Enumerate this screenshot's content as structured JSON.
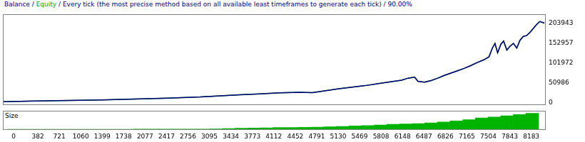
{
  "chart_data": [
    {
      "type": "line",
      "title": "Balance / Equity / Every tick (the most precise method based on all available least timeframes to generate each tick) / 90.00%",
      "x": [
        0,
        500,
        1000,
        1500,
        2000,
        2500,
        3000,
        3300,
        3600,
        3900,
        4200,
        4500,
        4700,
        4900,
        5100,
        5300,
        5500,
        5700,
        5900,
        6050,
        6150,
        6250,
        6300,
        6400,
        6500,
        6600,
        6700,
        6800,
        6900,
        7000,
        7100,
        7200,
        7300,
        7380,
        7430,
        7470,
        7510,
        7560,
        7600,
        7650,
        7700,
        7750,
        7800,
        7850,
        7900,
        7950,
        8000,
        8050,
        8100,
        8150,
        8220
      ],
      "series": [
        {
          "name": "Balance",
          "color": "#000080",
          "values": [
            3000,
            4500,
            6000,
            7500,
            9500,
            12000,
            15000,
            18000,
            20500,
            23000,
            25500,
            27000,
            26000,
            31000,
            36000,
            40000,
            44000,
            49000,
            54000,
            58000,
            63000,
            66000,
            55000,
            53000,
            57000,
            63000,
            70000,
            76000,
            82000,
            88000,
            95000,
            103000,
            110000,
            118000,
            140000,
            152000,
            128000,
            150000,
            158000,
            135000,
            145000,
            152000,
            140000,
            160000,
            170000,
            172000,
            180000,
            190000,
            200000,
            208000,
            204000
          ]
        },
        {
          "name": "Equity",
          "color": "#00a000",
          "values": [
            3000,
            4500,
            6000,
            7500,
            9500,
            12000,
            15000,
            18000,
            20500,
            23000,
            25500,
            27000,
            26000,
            31000,
            36000,
            40000,
            44000,
            49000,
            54000,
            58000,
            63000,
            66000,
            55000,
            53000,
            57000,
            63000,
            70000,
            76000,
            82000,
            88000,
            95000,
            103000,
            110000,
            118000,
            140000,
            152000,
            128000,
            150000,
            158000,
            135000,
            145000,
            152000,
            140000,
            160000,
            170000,
            172000,
            180000,
            190000,
            200000,
            208000,
            204000
          ]
        }
      ],
      "xlim": [
        0,
        8230
      ],
      "ylim": [
        -5000,
        226000
      ],
      "yticks": [
        0,
        50986,
        101972,
        152957,
        203943
      ],
      "grid": false,
      "tick_labels": "y"
    },
    {
      "type": "bar",
      "title": "Size",
      "x": [
        0,
        200,
        400,
        600,
        800,
        1000,
        1200,
        1400,
        1600,
        1800,
        2000,
        2200,
        2400,
        2600,
        2800,
        3000,
        3200,
        3400,
        3600,
        3800,
        4000,
        4200,
        4400,
        4600,
        4800,
        5000,
        5200,
        5400,
        5600,
        5800,
        6000,
        6200,
        6400,
        6600,
        6800,
        7000,
        7200,
        7400,
        7600,
        7800,
        8000,
        8200
      ],
      "values": [
        0.1,
        0.1,
        0.1,
        0.1,
        0.1,
        0.2,
        0.2,
        0.2,
        0.2,
        0.2,
        0.3,
        0.3,
        0.3,
        0.3,
        0.4,
        0.4,
        0.5,
        1,
        1.3,
        1.6,
        1.8,
        2.1,
        2.3,
        2.4,
        2.6,
        3,
        3.5,
        4,
        4.6,
        5.2,
        5.9,
        6.5,
        6.8,
        7.6,
        8.8,
        10,
        11.5,
        13.5,
        14.5,
        16,
        17.5,
        19
      ],
      "color": "#00b400",
      "xlim": [
        0,
        8230
      ],
      "xticks": [
        0,
        382,
        721,
        1060,
        1399,
        1738,
        2077,
        2417,
        2756,
        3095,
        3434,
        3773,
        4112,
        4452,
        4791,
        5130,
        5469,
        5808,
        6148,
        6487,
        6826,
        7165,
        7504,
        7843,
        8183
      ],
      "ylim": [
        0,
        22
      ],
      "grid": false,
      "tick_labels": "x"
    }
  ]
}
